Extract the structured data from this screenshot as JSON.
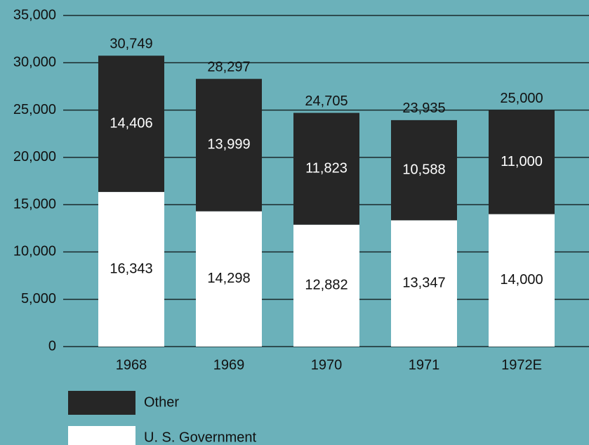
{
  "chart_data": {
    "type": "stacked_bar",
    "categories": [
      "1968",
      "1969",
      "1970",
      "1971",
      "1972E"
    ],
    "series": [
      {
        "name": "U. S. Government",
        "color": "#ffffff",
        "values": [
          16343,
          14298,
          12882,
          13347,
          14000
        ],
        "value_labels": [
          "16,343",
          "14,298",
          "12,882",
          "13,347",
          "14,000"
        ]
      },
      {
        "name": "Other",
        "color": "#262626",
        "values": [
          14406,
          13999,
          11823,
          10588,
          11000
        ],
        "value_labels": [
          "14,406",
          "13,999",
          "11,823",
          "10,588",
          "11,000"
        ]
      }
    ],
    "totals": [
      30749,
      28297,
      24705,
      23935,
      25000
    ],
    "total_labels": [
      "30,749",
      "28,297",
      "24,705",
      "23,935",
      "25,000"
    ],
    "ylim": [
      0,
      35000
    ],
    "yticks": [
      {
        "value": 0,
        "label": "0"
      },
      {
        "value": 5000,
        "label": "5,000"
      },
      {
        "value": 10000,
        "label": "10,000"
      },
      {
        "value": 15000,
        "label": "15,000"
      },
      {
        "value": 20000,
        "label": "20,000"
      },
      {
        "value": 25000,
        "label": "25,000"
      },
      {
        "value": 30000,
        "label": "30,000"
      },
      {
        "value": 35000,
        "label": "35,000"
      }
    ],
    "grid": true
  }
}
